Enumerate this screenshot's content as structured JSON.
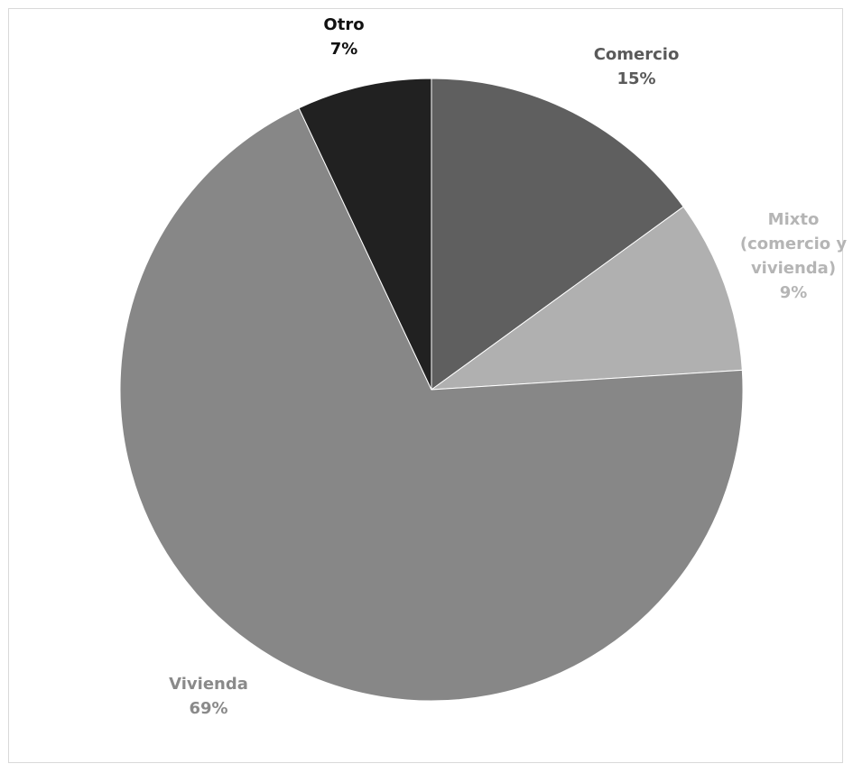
{
  "chart_data": {
    "type": "pie",
    "categories": [
      "Comercio",
      "Mixto (comercio y vivienda)",
      "Vivienda",
      "Otro"
    ],
    "values": [
      15,
      9,
      69,
      7
    ],
    "percent_labels": [
      "15%",
      "9%",
      "69%",
      "7%"
    ],
    "colors": [
      "#5f5f5f",
      "#b0b0b0",
      "#878787",
      "#212121"
    ],
    "label_colors": [
      "#5a5a5a",
      "#b5b5b5",
      "#8a8a8a",
      "#111111"
    ],
    "label_lines": [
      [
        "Comercio",
        "15%"
      ],
      [
        "Mixto",
        "(comercio y",
        "vivienda)",
        "9%"
      ],
      [
        "Vivienda",
        "69%"
      ],
      [
        "Otro",
        "7%"
      ]
    ],
    "start_angle_deg": 0,
    "direction": "clockwise",
    "legend": "none"
  }
}
